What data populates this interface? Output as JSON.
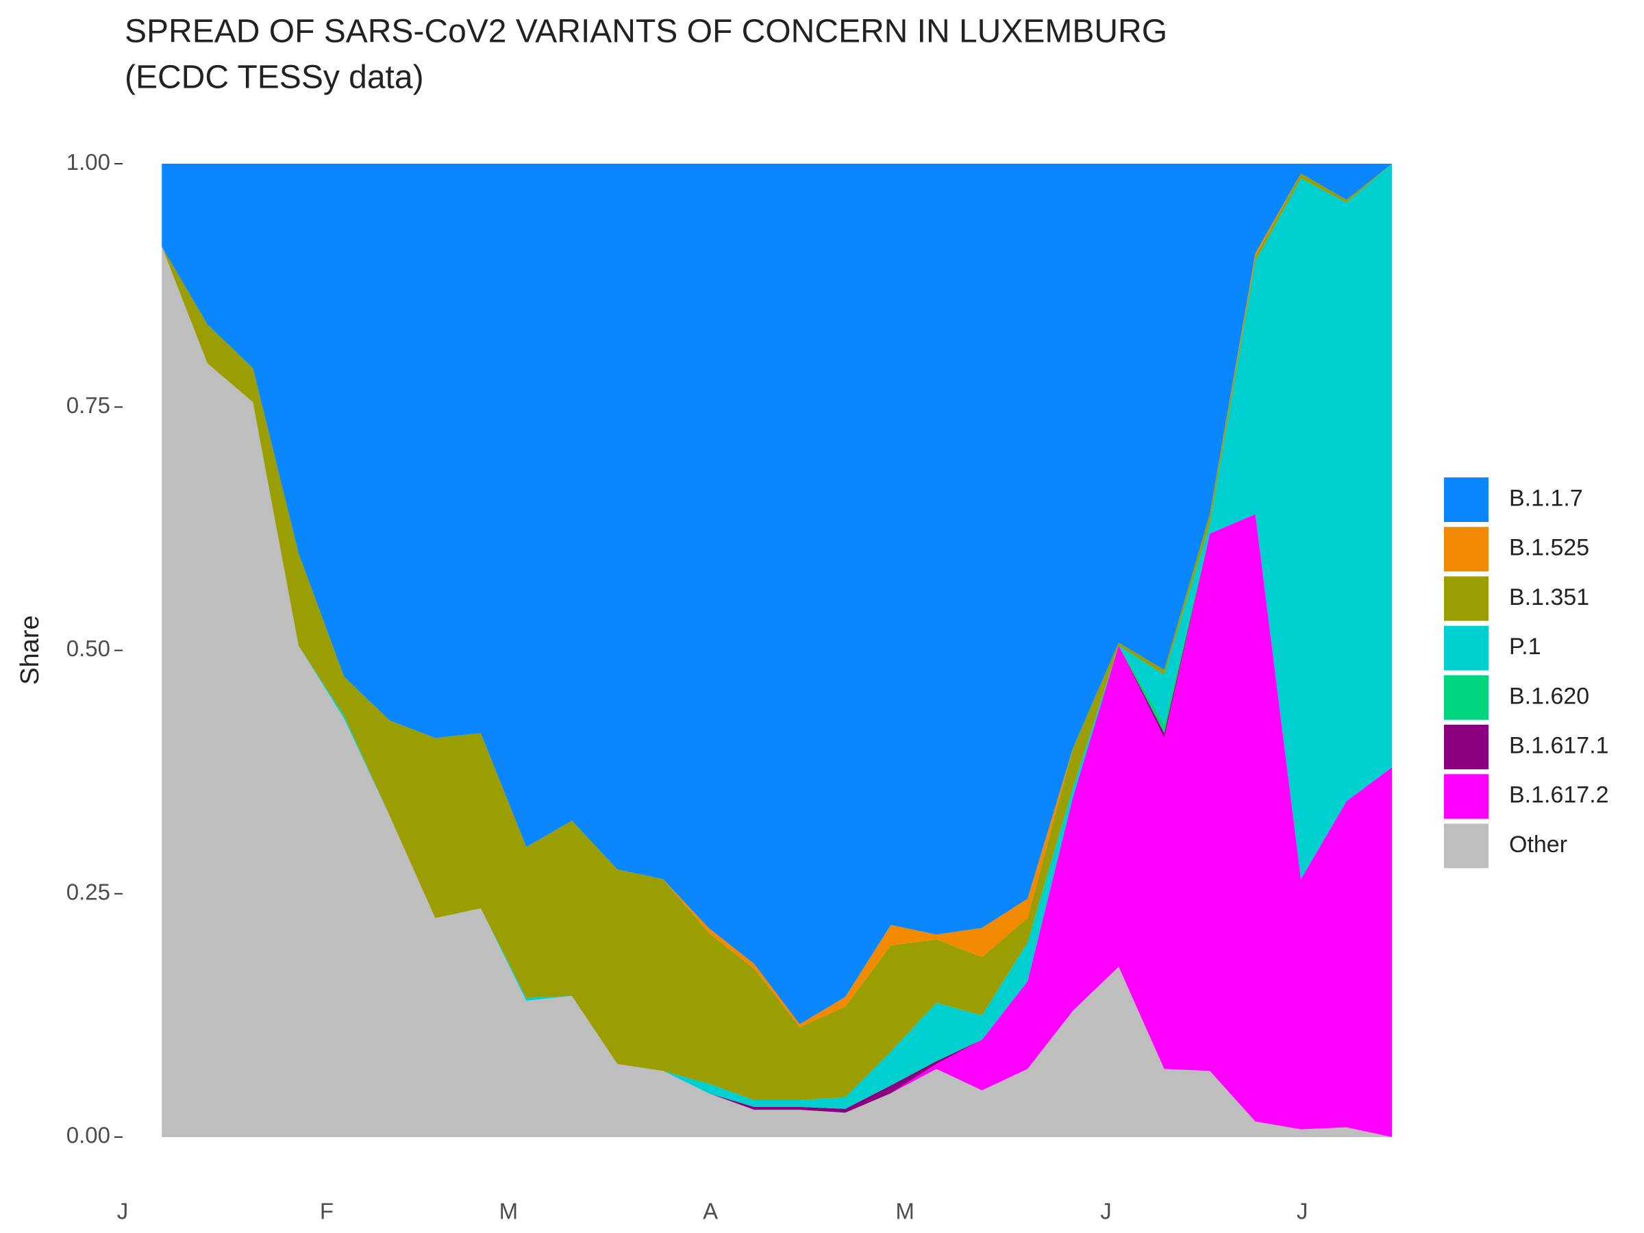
{
  "chart_data": {
    "type": "stacked_area",
    "title": "SPREAD OF SARS-CoV2 VARIANTS OF CONCERN IN LUXEMBURG",
    "subtitle": "(ECDC TESSy data)",
    "y_label": "Share",
    "categories": [
      null,
      null,
      null,
      null,
      null,
      null,
      null,
      null,
      null,
      null,
      null,
      null,
      null,
      null,
      null,
      null,
      null,
      null,
      null,
      null,
      null,
      null,
      null,
      null,
      null,
      null,
      null,
      null
    ],
    "xlim": [
      -0.86,
      28.35
    ],
    "xticks": [
      {
        "value": -0.86,
        "label": "J"
      },
      {
        "value": 3.62,
        "label": "F"
      },
      {
        "value": 7.61,
        "label": "M"
      },
      {
        "value": 12.04,
        "label": "A"
      },
      {
        "value": 16.31,
        "label": "M"
      },
      {
        "value": 20.72,
        "label": "J"
      },
      {
        "value": 25.03,
        "label": "J"
      }
    ],
    "ylim": [
      -0.05,
      1.05
    ],
    "yticks": [
      {
        "value": 0,
        "label": "0.00"
      },
      {
        "value": 0.25,
        "label": "0.25"
      },
      {
        "value": 0.5,
        "label": "0.50"
      },
      {
        "value": 0.75,
        "label": "0.75"
      },
      {
        "value": 1,
        "label": "1.00"
      }
    ],
    "legend": "right",
    "series": [
      {
        "name": "B.1.1.7",
        "color": "#0a86ff",
        "values": [
          0.085,
          0.165,
          0.21,
          0.4,
          0.527,
          0.572,
          0.59,
          0.585,
          0.702,
          0.675,
          0.725,
          0.735,
          0.785,
          0.822,
          0.884,
          0.856,
          0.782,
          0.792,
          0.785,
          0.755,
          0.6,
          0.492,
          0.52,
          0.36,
          0.092,
          0.01,
          0.037,
          0
        ]
      },
      {
        "name": "B.1.525",
        "color": "#f28a00",
        "values": [
          0,
          0,
          0,
          0,
          0,
          0,
          0,
          0,
          0,
          0,
          0,
          0,
          0.005,
          0.005,
          0.003,
          0.01,
          0.021,
          0.005,
          0.03,
          0.02,
          0,
          0,
          0,
          0,
          0.003,
          0,
          0,
          0
        ]
      },
      {
        "name": "B.1.351",
        "color": "#9a9e00",
        "values": [
          0,
          0.04,
          0.035,
          0.095,
          0.04,
          0.098,
          0.185,
          0.18,
          0.155,
          0.18,
          0.2,
          0.197,
          0.155,
          0.135,
          0.075,
          0.093,
          0.109,
          0.065,
          0.06,
          0.025,
          0.04,
          0.003,
          0.005,
          0.01,
          0.005,
          0.005,
          0.003,
          0
        ]
      },
      {
        "name": "P.1",
        "color": "#00cfcf",
        "values": [
          0,
          0,
          0,
          0,
          0.003,
          0,
          0,
          0,
          0.003,
          0,
          0,
          0,
          0.01,
          0.007,
          0.007,
          0.012,
          0.035,
          0.06,
          0.025,
          0.04,
          0.01,
          0,
          0.05,
          0.01,
          0.26,
          0.72,
          0.615,
          0.62
        ]
      },
      {
        "name": "B.1.620",
        "color": "#00d47c",
        "values": [
          0,
          0,
          0,
          0,
          0,
          0,
          0,
          0,
          0,
          0,
          0,
          0,
          0,
          0,
          0,
          0,
          0,
          0,
          0,
          0,
          0,
          0,
          0.01,
          0,
          0,
          0,
          0,
          0
        ]
      },
      {
        "name": "B.1.617.1",
        "color": "#8b007f",
        "values": [
          0,
          0,
          0,
          0,
          0,
          0,
          0,
          0,
          0,
          0,
          0,
          0,
          0,
          0.003,
          0.003,
          0.004,
          0.008,
          0.003,
          0,
          0,
          0,
          0,
          0.005,
          0,
          0,
          0,
          0,
          0
        ]
      },
      {
        "name": "B.1.617.2",
        "color": "#ff00ff",
        "values": [
          0,
          0,
          0,
          0,
          0,
          0,
          0,
          0,
          0,
          0,
          0,
          0,
          0,
          0,
          0,
          0,
          0,
          0.005,
          0.052,
          0.09,
          0.22,
          0.33,
          0.34,
          0.552,
          0.624,
          0.257,
          0.335,
          0.38
        ]
      },
      {
        "name": "Other",
        "color": "#bebebe",
        "values": [
          0.915,
          0.795,
          0.755,
          0.505,
          0.43,
          0.33,
          0.225,
          0.235,
          0.14,
          0.145,
          0.075,
          0.068,
          0.045,
          0.028,
          0.028,
          0.025,
          0.045,
          0.07,
          0.048,
          0.07,
          0.13,
          0.175,
          0.07,
          0.068,
          0.016,
          0.008,
          0.01,
          0
        ]
      }
    ]
  }
}
